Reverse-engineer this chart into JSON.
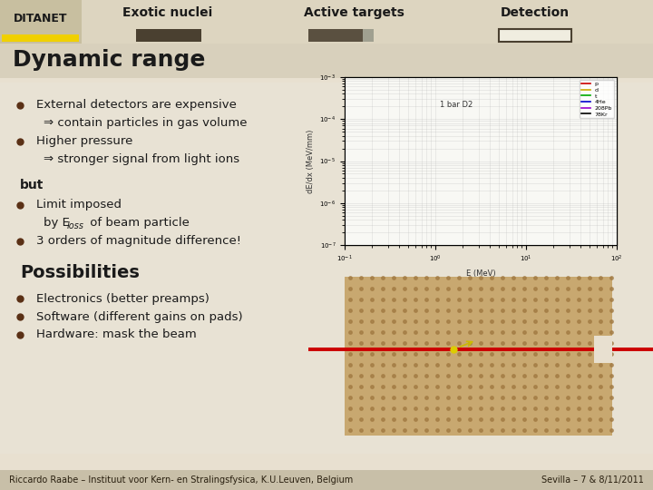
{
  "bg_color": "#e8e0d0",
  "header_bg": "#ddd5c0",
  "title_bar_bg": "#c8bfa8",
  "title": "Dynamic range",
  "title_color": "#1a1a1a",
  "header_label1": "Exotic nuclei",
  "header_label2": "Active targets",
  "header_label3": "Detection",
  "header_box1_color": "#4a4030",
  "header_box2_color": "#5a5040",
  "header_box3_color": "#ffffff",
  "bullet_color": "#4a3820",
  "bullet_items": [
    "External detectors are expensive",
    "⇒ contain particles in gas volume",
    "Higher pressure",
    "⇒ stronger signal from light ions"
  ],
  "but_text": "but",
  "bullet_items2": [
    "Limit imposed",
    "by Eₓₒₛₛ of beam particle",
    "3 orders of magnitude difference!"
  ],
  "possibilities_title": "Possibilities",
  "bullet_items3": [
    "Electronics (better preamps)",
    "Software (different gains on pads)",
    "Hardware: mask the beam"
  ],
  "footer_left": "Riccardo Raabe – Instituut voor Kern- en Stralingsfysica, K.U.Leuven, Belgium",
  "footer_right": "Sevilla – 7 & 8/11/2011",
  "footer_color": "#2a2010",
  "footer_bg": "#c8bfa8"
}
